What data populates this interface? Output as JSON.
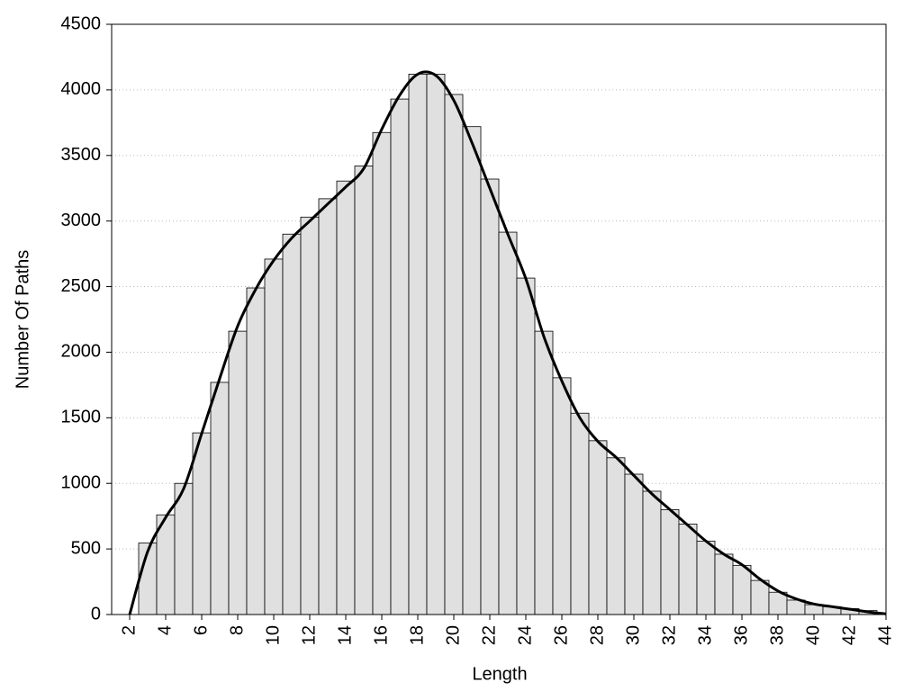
{
  "chart_data": {
    "type": "bar",
    "x_label": "Length",
    "y_label": "Number Of Paths",
    "x": [
      2,
      3,
      4,
      5,
      6,
      7,
      8,
      9,
      10,
      11,
      12,
      13,
      14,
      15,
      16,
      17,
      18,
      19,
      20,
      21,
      22,
      23,
      24,
      25,
      26,
      27,
      28,
      29,
      30,
      31,
      32,
      33,
      34,
      35,
      36,
      37,
      38,
      39,
      40,
      41,
      42,
      43,
      44
    ],
    "series": [
      {
        "type": "bar",
        "color": "#e0e0e0",
        "values": [
          0,
          545,
          760,
          1000,
          1385,
          1770,
          2160,
          2490,
          2710,
          2900,
          3030,
          3170,
          3305,
          3420,
          3675,
          3930,
          4120,
          4120,
          3965,
          3720,
          3320,
          2915,
          2565,
          2160,
          1805,
          1535,
          1325,
          1195,
          1070,
          940,
          800,
          690,
          560,
          460,
          375,
          260,
          170,
          110,
          75,
          60,
          45,
          30,
          0
        ]
      },
      {
        "type": "line",
        "color": "#000000",
        "values": [
          0,
          480,
          740,
          960,
          1380,
          1800,
          2200,
          2480,
          2700,
          2870,
          3000,
          3130,
          3260,
          3400,
          3700,
          3960,
          4120,
          4110,
          3920,
          3600,
          3250,
          2900,
          2560,
          2120,
          1780,
          1500,
          1320,
          1200,
          1060,
          920,
          800,
          680,
          560,
          460,
          380,
          270,
          180,
          120,
          80,
          60,
          40,
          20,
          5
        ]
      }
    ],
    "xlim": [
      1,
      44
    ],
    "xticks": [
      2,
      4,
      6,
      8,
      10,
      12,
      14,
      16,
      18,
      20,
      22,
      24,
      26,
      28,
      30,
      32,
      34,
      36,
      38,
      40,
      42,
      44
    ],
    "ylim": [
      0,
      4500
    ],
    "yticks": [
      0,
      500,
      1000,
      1500,
      2000,
      2500,
      3000,
      3500,
      4000,
      4500
    ],
    "grid": true
  }
}
